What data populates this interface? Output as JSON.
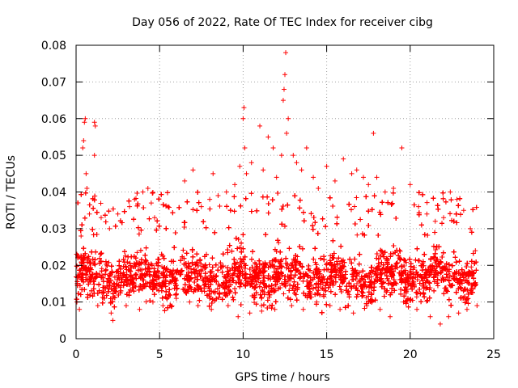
{
  "chart_data": {
    "type": "scatter",
    "title": "Day 056 of 2022, Rate Of TEC Index for receiver cibg",
    "xlabel": "GPS time / hours",
    "ylabel": "ROTI / TECUs",
    "xlim": [
      0,
      25
    ],
    "ylim": [
      0,
      0.08
    ],
    "x_ticks": [
      0,
      5,
      10,
      15,
      20,
      25
    ],
    "x_tick_labels": [
      "0",
      "5",
      "10",
      "15",
      "20",
      "25"
    ],
    "y_ticks": [
      0,
      0.01,
      0.02,
      0.03,
      0.04,
      0.05,
      0.06,
      0.07,
      0.08
    ],
    "y_tick_labels": [
      "0",
      "0.01",
      "0.02",
      "0.03",
      "0.04",
      "0.05",
      "0.06",
      "0.07",
      "0.08"
    ],
    "grid": true,
    "marker": "plus",
    "color": "#ff0000",
    "series": [
      {
        "name": "ROTI",
        "points": [
          [
            0.1,
            0.022
          ],
          [
            0.3,
            0.028
          ],
          [
            0.4,
            0.052
          ],
          [
            0.45,
            0.054
          ],
          [
            0.5,
            0.059
          ],
          [
            0.55,
            0.06
          ],
          [
            0.6,
            0.045
          ],
          [
            0.65,
            0.041
          ],
          [
            0.8,
            0.034
          ],
          [
            1.1,
            0.059
          ],
          [
            1.15,
            0.058
          ],
          [
            1.1,
            0.05
          ],
          [
            1.5,
            0.033
          ],
          [
            2.0,
            0.03
          ],
          [
            2.5,
            0.034
          ],
          [
            3.2,
            0.036
          ],
          [
            3.5,
            0.038
          ],
          [
            4.0,
            0.04
          ],
          [
            4.3,
            0.041
          ],
          [
            4.5,
            0.037
          ],
          [
            4.7,
            0.033
          ],
          [
            5.5,
            0.036
          ],
          [
            6.5,
            0.043
          ],
          [
            7.0,
            0.046
          ],
          [
            7.5,
            0.036
          ],
          [
            8.0,
            0.038
          ],
          [
            8.2,
            0.045
          ],
          [
            8.5,
            0.039
          ],
          [
            9.0,
            0.04
          ],
          [
            9.5,
            0.042
          ],
          [
            9.8,
            0.047
          ],
          [
            10.0,
            0.06
          ],
          [
            10.05,
            0.063
          ],
          [
            10.1,
            0.052
          ],
          [
            10.2,
            0.045
          ],
          [
            10.5,
            0.048
          ],
          [
            11.0,
            0.058
          ],
          [
            11.2,
            0.046
          ],
          [
            11.5,
            0.055
          ],
          [
            11.8,
            0.052
          ],
          [
            12.0,
            0.044
          ],
          [
            12.3,
            0.05
          ],
          [
            12.4,
            0.065
          ],
          [
            12.45,
            0.068
          ],
          [
            12.5,
            0.072
          ],
          [
            12.55,
            0.078
          ],
          [
            12.6,
            0.056
          ],
          [
            12.7,
            0.06
          ],
          [
            13.0,
            0.05
          ],
          [
            13.2,
            0.048
          ],
          [
            13.5,
            0.046
          ],
          [
            13.8,
            0.052
          ],
          [
            14.2,
            0.044
          ],
          [
            14.5,
            0.041
          ],
          [
            15.0,
            0.047
          ],
          [
            15.5,
            0.043
          ],
          [
            16.0,
            0.049
          ],
          [
            16.5,
            0.045
          ],
          [
            16.8,
            0.046
          ],
          [
            17.2,
            0.044
          ],
          [
            17.5,
            0.042
          ],
          [
            17.8,
            0.056
          ],
          [
            18.0,
            0.044
          ],
          [
            18.5,
            0.04
          ],
          [
            19.0,
            0.041
          ],
          [
            19.5,
            0.052
          ],
          [
            20.0,
            0.042
          ],
          [
            20.5,
            0.036
          ],
          [
            21.0,
            0.034
          ],
          [
            21.5,
            0.032
          ],
          [
            22.0,
            0.033
          ],
          [
            22.4,
            0.04
          ],
          [
            22.8,
            0.038
          ],
          [
            23.2,
            0.035
          ],
          [
            23.6,
            0.03
          ],
          [
            23.9,
            0.024
          ],
          [
            0.05,
            0.01
          ],
          [
            0.2,
            0.008
          ],
          [
            0.7,
            0.012
          ],
          [
            1.3,
            0.009
          ],
          [
            2.1,
            0.007
          ],
          [
            2.2,
            0.005
          ],
          [
            3.0,
            0.009
          ],
          [
            3.8,
            0.008
          ],
          [
            4.6,
            0.01
          ],
          [
            5.2,
            0.009
          ],
          [
            6.0,
            0.011
          ],
          [
            6.8,
            0.01
          ],
          [
            7.3,
            0.009
          ],
          [
            8.1,
            0.008
          ],
          [
            9.1,
            0.009
          ],
          [
            9.7,
            0.006
          ],
          [
            10.4,
            0.007
          ],
          [
            11.1,
            0.009
          ],
          [
            11.9,
            0.008
          ],
          [
            12.9,
            0.009
          ],
          [
            13.6,
            0.008
          ],
          [
            14.4,
            0.01
          ],
          [
            15.2,
            0.009
          ],
          [
            15.8,
            0.008
          ],
          [
            16.6,
            0.007
          ],
          [
            17.4,
            0.009
          ],
          [
            18.2,
            0.008
          ],
          [
            18.8,
            0.006
          ],
          [
            19.6,
            0.01
          ],
          [
            20.4,
            0.008
          ],
          [
            21.2,
            0.006
          ],
          [
            21.8,
            0.004
          ],
          [
            22.3,
            0.006
          ],
          [
            22.9,
            0.007
          ],
          [
            23.4,
            0.008
          ],
          [
            24.0,
            0.009
          ]
        ],
        "density_band": {
          "x_range": [
            0,
            24
          ],
          "typical_low": 0.008,
          "typical_high": 0.028,
          "center": 0.017
        }
      }
    ]
  }
}
